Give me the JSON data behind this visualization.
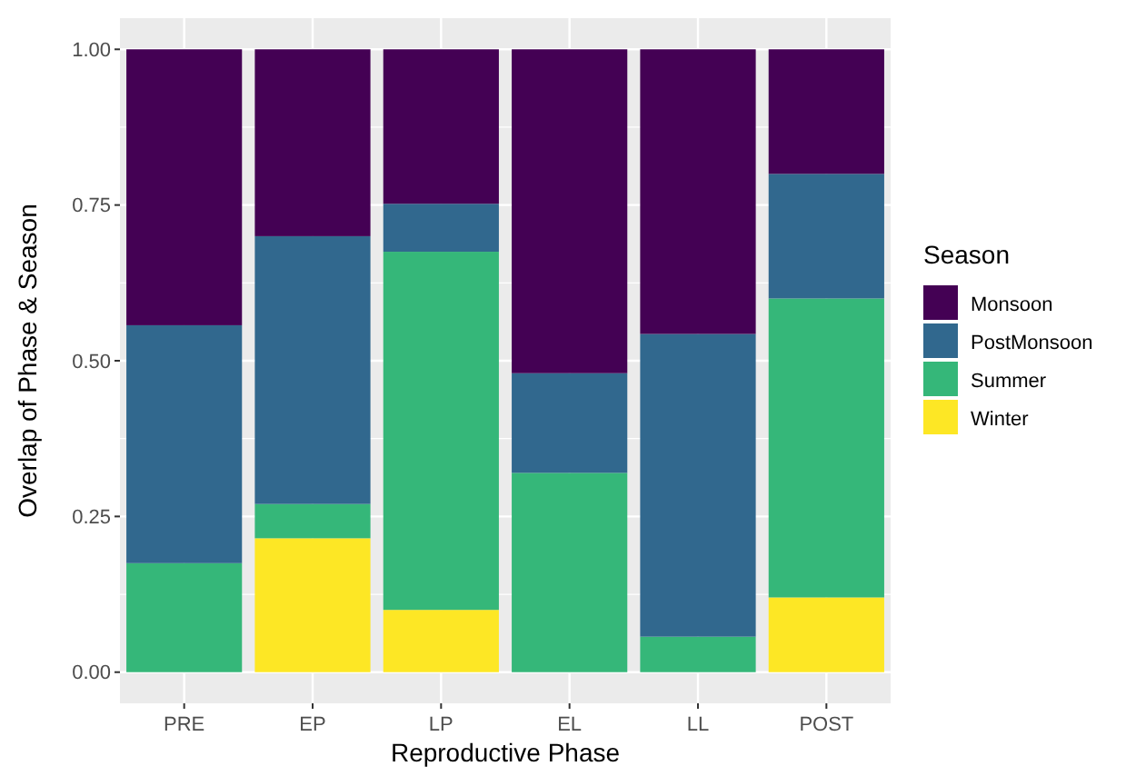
{
  "chart_data": {
    "type": "bar",
    "xlabel": "Reproductive Phase",
    "ylabel": "Overlap of Phase & Season",
    "legend_title": "Season",
    "categories": [
      "PRE",
      "EP",
      "LP",
      "EL",
      "LL",
      "POST"
    ],
    "stacked": true,
    "series": [
      {
        "name": "Winter",
        "color": "#fde725",
        "values": [
          0,
          0.215,
          0.1,
          0,
          0,
          0.12
        ]
      },
      {
        "name": "Summer",
        "color": "#35b779",
        "values": [
          0.175,
          0.055,
          0.575,
          0.32,
          0.057,
          0.48
        ]
      },
      {
        "name": "PostMonsoon",
        "color": "#31688e",
        "values": [
          0.382,
          0.43,
          0.077,
          0.16,
          0.486,
          0.2
        ]
      },
      {
        "name": "Monsoon",
        "color": "#440154",
        "values": [
          0.443,
          0.3,
          0.248,
          0.52,
          0.457,
          0.2
        ]
      }
    ],
    "ylim": [
      -0.05,
      1.05
    ],
    "yticks": [
      {
        "value": 0,
        "label": "0.00"
      },
      {
        "value": 0.25,
        "label": "0.25"
      },
      {
        "value": 0.5,
        "label": "0.50"
      },
      {
        "value": 0.75,
        "label": "0.75"
      },
      {
        "value": 1,
        "label": "1.00"
      }
    ],
    "grid": true,
    "legend": "right"
  }
}
